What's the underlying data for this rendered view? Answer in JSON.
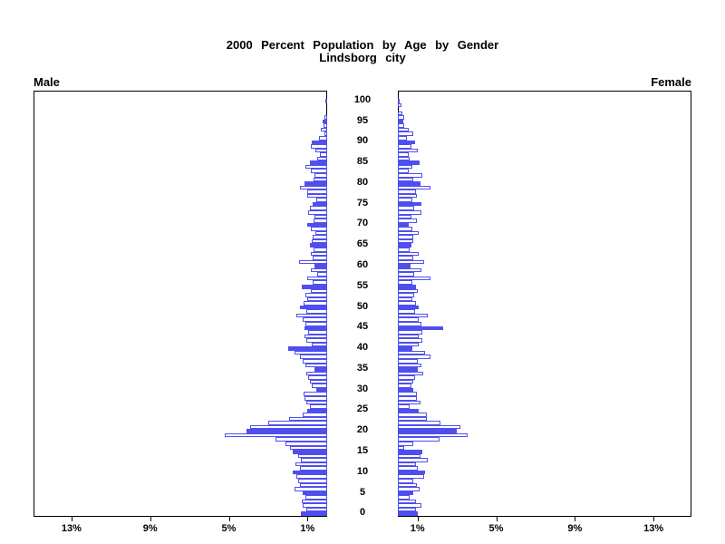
{
  "title": {
    "line1": "2000 Percent Population by Age by Gender",
    "line2": "Lindsborg city"
  },
  "chart_data": {
    "type": "bar",
    "subtype": "population-pyramid",
    "title": "2000 Percent Population by Age by Gender",
    "subtitle": "Lindsborg city",
    "left_series_label": "Male",
    "right_series_label": "Female",
    "age_axis": {
      "min": 0,
      "max": 100,
      "tick_step": 5,
      "unit": "years (single-year-of-age bars)"
    },
    "pct_axis": {
      "ticks": [
        1,
        5,
        9,
        13
      ],
      "tick_suffix": "%",
      "max": 14.9,
      "mirrored": true
    },
    "fill_rule": "ages divisible by 5 are solid blue bars; all other ages are white bars with blue outline",
    "legend_position": "none",
    "grid": false,
    "colors": {
      "bar_blue": "#4f4fef",
      "bar_white": "#ffffff",
      "axis_black": "#000000",
      "background": "#ffffff"
    },
    "series": [
      {
        "name": "Male",
        "side": "left",
        "ages": "values[i] = percent of population at age i, ages 0-100",
        "values": [
          1.35,
          1.05,
          1.25,
          1.3,
          1.1,
          1.25,
          1.65,
          1.4,
          1.5,
          1.55,
          1.75,
          1.4,
          1.6,
          1.35,
          1.5,
          1.75,
          1.9,
          2.1,
          2.65,
          5.2,
          4.1,
          3.9,
          3.0,
          1.95,
          1.25,
          1.0,
          0.9,
          1.05,
          1.15,
          1.22,
          0.55,
          0.8,
          0.9,
          0.95,
          1.05,
          0.65,
          1.1,
          1.25,
          1.4,
          1.65,
          2.0,
          0.8,
          1.05,
          1.15,
          0.95,
          1.15,
          1.1,
          1.25,
          1.55,
          1.05,
          1.4,
          1.2,
          1.0,
          1.1,
          0.85,
          1.3,
          0.75,
          1.0,
          0.5,
          0.85,
          0.67,
          1.45,
          0.75,
          0.85,
          0.7,
          0.9,
          0.8,
          0.75,
          0.6,
          0.85,
          1.0,
          0.7,
          0.65,
          0.95,
          0.9,
          0.75,
          0.55,
          1.0,
          1.0,
          1.4,
          1.15,
          0.7,
          0.63,
          0.85,
          1.1,
          0.9,
          0.5,
          0.35,
          0.58,
          0.85,
          0.8,
          0.41,
          0.14,
          0.32,
          0.18,
          0.24,
          0.14,
          0.0,
          0.0,
          0.0,
          0.1
        ]
      },
      {
        "name": "Female",
        "side": "right",
        "ages": "values[i] = percent of population at age i, ages 0-100",
        "values": [
          1.0,
          0.9,
          1.2,
          0.9,
          0.6,
          0.8,
          1.1,
          0.95,
          0.76,
          1.35,
          1.4,
          1.0,
          0.92,
          1.5,
          1.15,
          1.26,
          0.3,
          0.8,
          2.1,
          3.55,
          3.0,
          3.2,
          2.15,
          1.45,
          1.46,
          1.04,
          0.58,
          1.15,
          0.95,
          0.95,
          0.79,
          0.69,
          0.79,
          0.89,
          1.3,
          1.0,
          1.2,
          1.0,
          1.66,
          1.38,
          0.73,
          1.07,
          1.26,
          1.07,
          1.26,
          2.3,
          1.2,
          1.07,
          1.54,
          0.89,
          1.07,
          0.9,
          0.73,
          0.85,
          1.0,
          0.92,
          0.73,
          1.66,
          0.84,
          1.2,
          0.64,
          1.35,
          0.79,
          1.04,
          0.58,
          0.69,
          0.79,
          0.79,
          1.07,
          0.73,
          0.53,
          0.95,
          0.69,
          1.2,
          0.84,
          1.2,
          0.73,
          0.95,
          0.92,
          1.66,
          1.15,
          0.8,
          1.26,
          0.55,
          0.75,
          1.1,
          0.6,
          0.55,
          1.0,
          0.68,
          0.88,
          0.45,
          0.76,
          0.53,
          0.33,
          0.28,
          0.3,
          0.22,
          0.0,
          0.18,
          0.05
        ]
      }
    ]
  }
}
